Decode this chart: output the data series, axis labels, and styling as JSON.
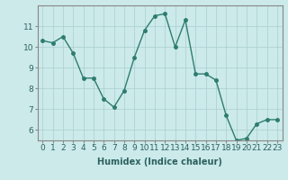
{
  "x": [
    0,
    1,
    2,
    3,
    4,
    5,
    6,
    7,
    8,
    9,
    10,
    11,
    12,
    13,
    14,
    15,
    16,
    17,
    18,
    19,
    20,
    21,
    22,
    23
  ],
  "y": [
    10.3,
    10.2,
    10.5,
    9.7,
    8.5,
    8.5,
    7.5,
    7.1,
    7.9,
    9.5,
    10.8,
    11.5,
    11.6,
    10.0,
    11.3,
    8.7,
    8.7,
    8.4,
    6.7,
    5.5,
    5.6,
    6.3,
    6.5,
    6.5
  ],
  "line_color": "#2d7d6e",
  "marker": "o",
  "markersize": 2.5,
  "linewidth": 1.0,
  "bg_color": "#cceaea",
  "grid_color": "#aacece",
  "xlabel": "Humidex (Indice chaleur)",
  "xlabel_fontsize": 7,
  "tick_fontsize": 6.5,
  "xlim": [
    -0.5,
    23.5
  ],
  "ylim": [
    5.5,
    12.0
  ],
  "yticks": [
    6,
    7,
    8,
    9,
    10,
    11
  ],
  "xticks": [
    0,
    1,
    2,
    3,
    4,
    5,
    6,
    7,
    8,
    9,
    10,
    11,
    12,
    13,
    14,
    15,
    16,
    17,
    18,
    19,
    20,
    21,
    22,
    23
  ]
}
